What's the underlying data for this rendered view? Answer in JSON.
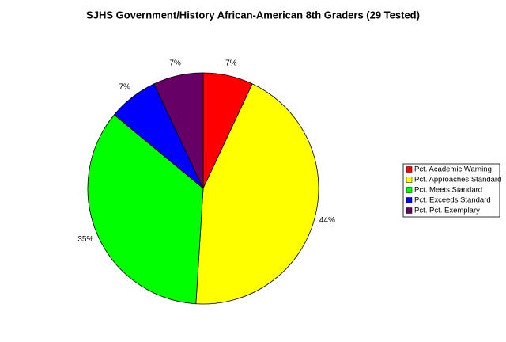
{
  "chart_data": {
    "type": "pie",
    "title": "SJHS Government/History African-American 8th Graders (29 Tested)",
    "categories": [
      "Pct. Academic Warning",
      "Pct. Approaches Standard",
      "Pct. Meets Standard",
      "Pct. Exceeds Standard",
      "Pct. Pct. Exemplary"
    ],
    "values": [
      7,
      44,
      35,
      7,
      7
    ],
    "value_labels": [
      "7%",
      "44%",
      "35%",
      "7%",
      "7%"
    ],
    "colors": [
      "#ff0000",
      "#ffff00",
      "#00ff00",
      "#0000ff",
      "#660066"
    ],
    "legend": "right"
  }
}
